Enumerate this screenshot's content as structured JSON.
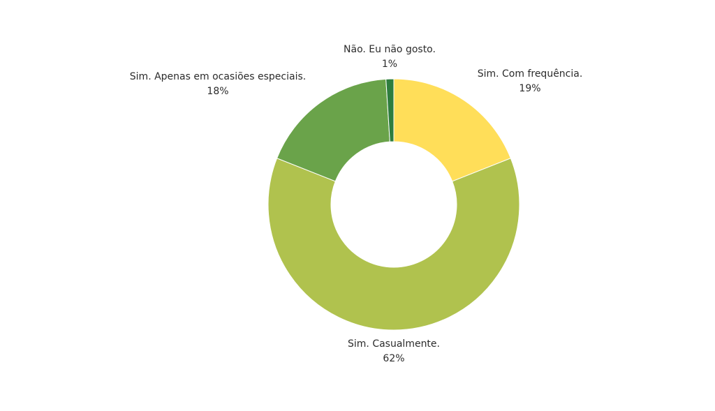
{
  "chart_data": {
    "type": "pie",
    "variant": "donut",
    "slices": [
      {
        "label": "Sim. Com frequência.",
        "value": 19,
        "value_label": "19%",
        "color": "#FFDE59"
      },
      {
        "label": "Sim. Casualmente.",
        "value": 62,
        "value_label": "62%",
        "color": "#B0C24E"
      },
      {
        "label": "Sim. Apenas em ocasiões especiais.",
        "value": 18,
        "value_label": "18%",
        "color": "#6AA34A"
      },
      {
        "label": "Não. Eu não gosto.",
        "value": 1,
        "value_label": "1%",
        "color": "#2E7D3E"
      }
    ],
    "start_angle_deg": 0,
    "direction": "clockwise",
    "legend": "none",
    "data_labels": "outside"
  }
}
